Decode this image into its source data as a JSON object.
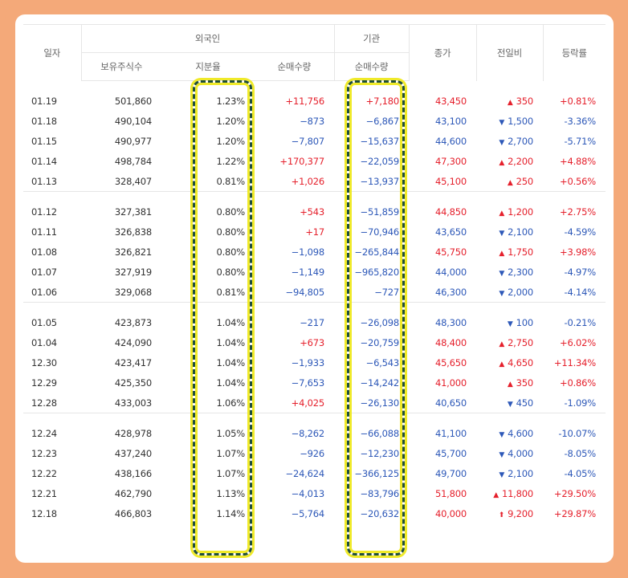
{
  "headers": {
    "date": "일자",
    "foreign": "외국인",
    "institution": "기관",
    "close": "종가",
    "change": "전일비",
    "rate": "등락률",
    "holdings": "보유주식수",
    "ratio": "지분율",
    "foreign_net": "순매수량",
    "inst_net": "순매수량"
  },
  "groups": [
    [
      {
        "date": "01.19",
        "holdings": "501,860",
        "ratio": "1.23%",
        "foreign": "+11,756",
        "inst": "+7,180",
        "close": "43,450",
        "change": "350",
        "dir": "up",
        "rate": "+0.81%"
      },
      {
        "date": "01.18",
        "holdings": "490,104",
        "ratio": "1.20%",
        "foreign": "−873",
        "inst": "−6,867",
        "close": "43,100",
        "change": "1,500",
        "dir": "down",
        "rate": "-3.36%"
      },
      {
        "date": "01.15",
        "holdings": "490,977",
        "ratio": "1.20%",
        "foreign": "−7,807",
        "inst": "−15,637",
        "close": "44,600",
        "change": "2,700",
        "dir": "down",
        "rate": "-5.71%"
      },
      {
        "date": "01.14",
        "holdings": "498,784",
        "ratio": "1.22%",
        "foreign": "+170,377",
        "inst": "−22,059",
        "close": "47,300",
        "change": "2,200",
        "dir": "up",
        "rate": "+4.88%"
      },
      {
        "date": "01.13",
        "holdings": "328,407",
        "ratio": "0.81%",
        "foreign": "+1,026",
        "inst": "−13,937",
        "close": "45,100",
        "change": "250",
        "dir": "up",
        "rate": "+0.56%"
      }
    ],
    [
      {
        "date": "01.12",
        "holdings": "327,381",
        "ratio": "0.80%",
        "foreign": "+543",
        "inst": "−51,859",
        "close": "44,850",
        "change": "1,200",
        "dir": "up",
        "rate": "+2.75%"
      },
      {
        "date": "01.11",
        "holdings": "326,838",
        "ratio": "0.80%",
        "foreign": "+17",
        "inst": "−70,946",
        "close": "43,650",
        "change": "2,100",
        "dir": "down",
        "rate": "-4.59%"
      },
      {
        "date": "01.08",
        "holdings": "326,821",
        "ratio": "0.80%",
        "foreign": "−1,098",
        "inst": "−265,844",
        "close": "45,750",
        "change": "1,750",
        "dir": "up",
        "rate": "+3.98%"
      },
      {
        "date": "01.07",
        "holdings": "327,919",
        "ratio": "0.80%",
        "foreign": "−1,149",
        "inst": "−965,820",
        "close": "44,000",
        "change": "2,300",
        "dir": "down",
        "rate": "-4.97%"
      },
      {
        "date": "01.06",
        "holdings": "329,068",
        "ratio": "0.81%",
        "foreign": "−94,805",
        "inst": "−727",
        "close": "46,300",
        "change": "2,000",
        "dir": "down",
        "rate": "-4.14%"
      }
    ],
    [
      {
        "date": "01.05",
        "holdings": "423,873",
        "ratio": "1.04%",
        "foreign": "−217",
        "inst": "−26,098",
        "close": "48,300",
        "change": "100",
        "dir": "down",
        "rate": "-0.21%"
      },
      {
        "date": "01.04",
        "holdings": "424,090",
        "ratio": "1.04%",
        "foreign": "+673",
        "inst": "−20,759",
        "close": "48,400",
        "change": "2,750",
        "dir": "up",
        "rate": "+6.02%"
      },
      {
        "date": "12.30",
        "holdings": "423,417",
        "ratio": "1.04%",
        "foreign": "−1,933",
        "inst": "−6,543",
        "close": "45,650",
        "change": "4,650",
        "dir": "up",
        "rate": "+11.34%"
      },
      {
        "date": "12.29",
        "holdings": "425,350",
        "ratio": "1.04%",
        "foreign": "−7,653",
        "inst": "−14,242",
        "close": "41,000",
        "change": "350",
        "dir": "up",
        "rate": "+0.86%"
      },
      {
        "date": "12.28",
        "holdings": "433,003",
        "ratio": "1.06%",
        "foreign": "+4,025",
        "inst": "−26,130",
        "close": "40,650",
        "change": "450",
        "dir": "down",
        "rate": "-1.09%"
      }
    ],
    [
      {
        "date": "12.24",
        "holdings": "428,978",
        "ratio": "1.05%",
        "foreign": "−8,262",
        "inst": "−66,088",
        "close": "41,100",
        "change": "4,600",
        "dir": "down",
        "rate": "-10.07%"
      },
      {
        "date": "12.23",
        "holdings": "437,240",
        "ratio": "1.07%",
        "foreign": "−926",
        "inst": "−12,230",
        "close": "45,700",
        "change": "4,000",
        "dir": "down",
        "rate": "-8.05%"
      },
      {
        "date": "12.22",
        "holdings": "438,166",
        "ratio": "1.07%",
        "foreign": "−24,624",
        "inst": "−366,125",
        "close": "49,700",
        "change": "2,100",
        "dir": "down",
        "rate": "-4.05%"
      },
      {
        "date": "12.21",
        "holdings": "462,790",
        "ratio": "1.13%",
        "foreign": "−4,013",
        "inst": "−83,796",
        "close": "51,800",
        "change": "11,800",
        "dir": "up",
        "rate": "+29.50%"
      },
      {
        "date": "12.18",
        "holdings": "466,803",
        "ratio": "1.14%",
        "foreign": "−5,764",
        "inst": "−20,632",
        "close": "40,000",
        "change": "9,200",
        "dir": "upper",
        "rate": "+29.87%"
      }
    ]
  ],
  "colors": {
    "up": "#e5202c",
    "down": "#2d58b8",
    "frame": "#f4a979",
    "highlight_border": "#f0ea2a",
    "highlight_dash": "#1e4d3c"
  },
  "icons": {
    "up": "up-triangle-icon",
    "down": "down-triangle-icon",
    "upper": "upper-limit-arrow-icon"
  }
}
